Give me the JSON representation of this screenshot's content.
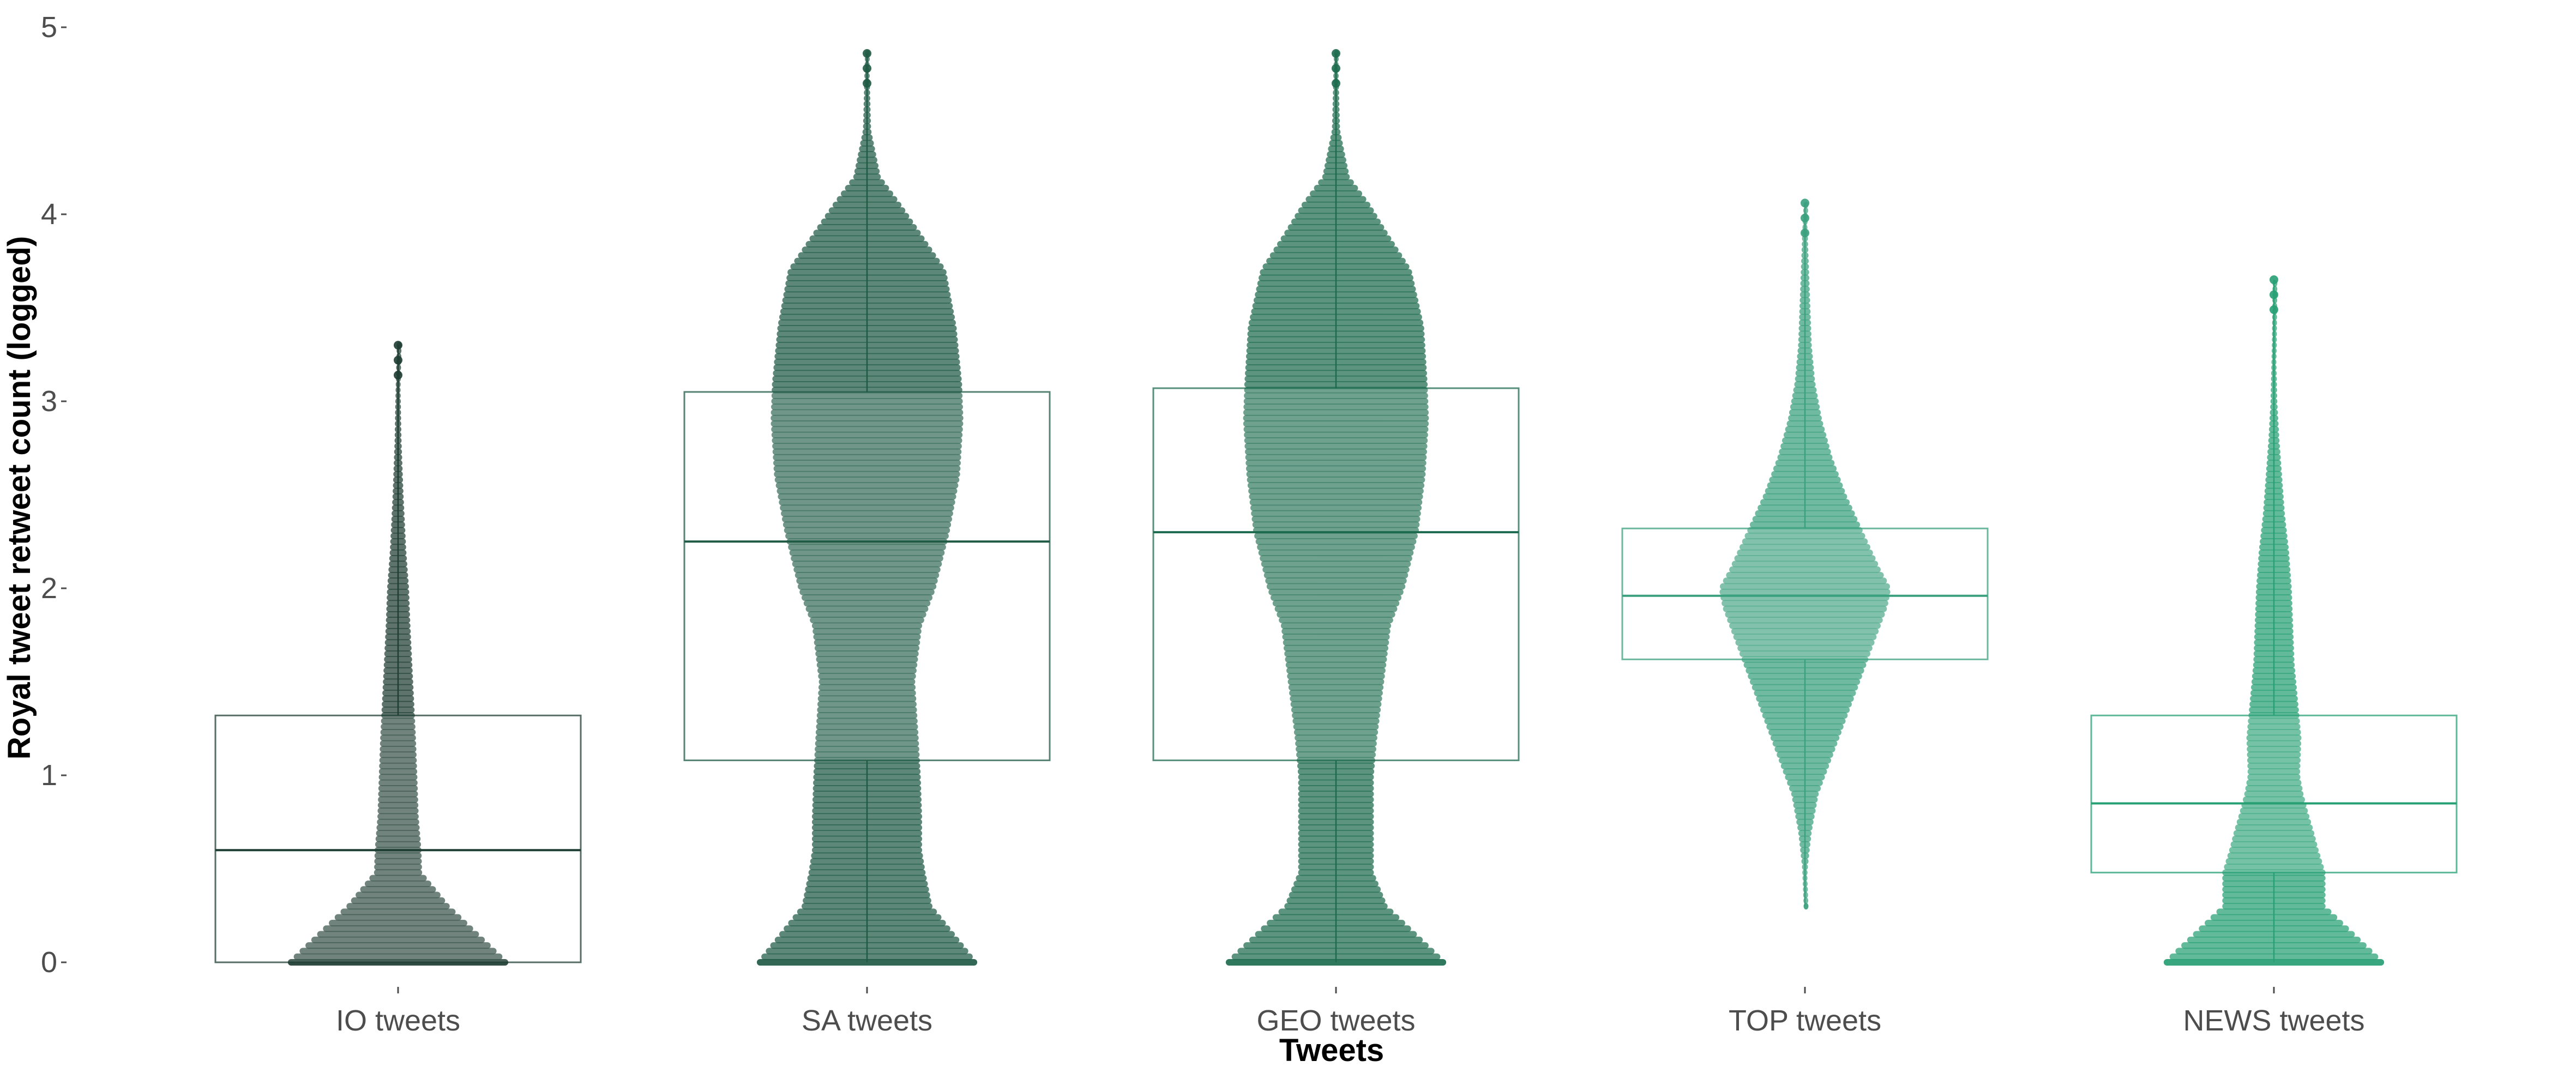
{
  "chart_data": {
    "type": "beeswarm-boxplot",
    "xlabel": "Tweets",
    "ylabel": "Royal tweet retweet count (logged)",
    "ylim": [
      0,
      5
    ],
    "yticks": [
      0,
      1,
      2,
      3,
      4,
      5
    ],
    "grid": false,
    "legend": "none",
    "categories": [
      "IO tweets",
      "SA tweets",
      "GEO tweets",
      "TOP tweets",
      "NEWS tweets"
    ],
    "colors": [
      "#1e3d33",
      "#1f5a45",
      "#1d6b4f",
      "#3aa07e",
      "#27a074"
    ],
    "box_stats": [
      {
        "category": "IO tweets",
        "whisker_low": 0,
        "q1": 0,
        "median": 0.6,
        "q3": 1.32,
        "whisker_high": 3.3
      },
      {
        "category": "SA tweets",
        "whisker_low": 0,
        "q1": 1.08,
        "median": 2.25,
        "q3": 3.05,
        "whisker_high": 4.86
      },
      {
        "category": "GEO tweets",
        "whisker_low": 0,
        "q1": 1.08,
        "median": 2.3,
        "q3": 3.07,
        "whisker_high": 4.86
      },
      {
        "category": "TOP tweets",
        "whisker_low": 0.3,
        "q1": 1.62,
        "median": 1.96,
        "q3": 2.32,
        "whisker_high": 4.06
      },
      {
        "category": "NEWS tweets",
        "whisker_low": 0,
        "q1": 0.48,
        "median": 0.85,
        "q3": 1.32,
        "whisker_high": 3.65
      }
    ],
    "density_profiles": [
      {
        "category": "IO tweets",
        "y": [
          0,
          0.3,
          0.48,
          0.6,
          0.78,
          1,
          1.2,
          1.5,
          1.8,
          2,
          2.2,
          2.5,
          2.8,
          3,
          3.3
        ],
        "halfwidth": [
          0.16,
          0.075,
          0.035,
          0.034,
          0.03,
          0.028,
          0.026,
          0.022,
          0.018,
          0.016,
          0.012,
          0.008,
          0.005,
          0.004,
          0.002
        ]
      },
      {
        "category": "SA tweets",
        "y": [
          0,
          0.3,
          0.48,
          0.6,
          0.78,
          1,
          1.2,
          1.5,
          1.8,
          2,
          2.3,
          2.6,
          2.9,
          3.1,
          3.4,
          3.7,
          3.9,
          4.05,
          4.2,
          4.45,
          4.86
        ],
        "halfwidth": [
          0.16,
          0.095,
          0.085,
          0.08,
          0.08,
          0.078,
          0.075,
          0.07,
          0.08,
          0.1,
          0.12,
          0.135,
          0.14,
          0.138,
          0.13,
          0.115,
          0.078,
          0.05,
          0.02,
          0.006,
          0.003
        ]
      },
      {
        "category": "GEO tweets",
        "y": [
          0,
          0.3,
          0.48,
          0.6,
          0.78,
          1,
          1.2,
          1.5,
          1.8,
          2,
          2.3,
          2.6,
          2.9,
          3.1,
          3.4,
          3.7,
          3.9,
          4.05,
          4.2,
          4.45,
          4.86
        ],
        "halfwidth": [
          0.16,
          0.075,
          0.055,
          0.055,
          0.055,
          0.055,
          0.06,
          0.07,
          0.08,
          0.1,
          0.12,
          0.13,
          0.135,
          0.133,
          0.128,
          0.11,
          0.075,
          0.05,
          0.02,
          0.006,
          0.003
        ]
      },
      {
        "category": "TOP tweets",
        "y": [
          0.3,
          0.5,
          0.7,
          0.9,
          1.1,
          1.3,
          1.5,
          1.7,
          1.9,
          2,
          2.1,
          2.3,
          2.5,
          2.7,
          2.9,
          3.1,
          3.3,
          3.5,
          3.7,
          3.9,
          4.06
        ],
        "halfwidth": [
          0.002,
          0.004,
          0.01,
          0.02,
          0.04,
          0.06,
          0.08,
          0.1,
          0.12,
          0.125,
          0.11,
          0.085,
          0.06,
          0.04,
          0.025,
          0.015,
          0.01,
          0.008,
          0.006,
          0.004,
          0.002
        ]
      },
      {
        "category": "NEWS tweets",
        "y": [
          0,
          0.3,
          0.48,
          0.6,
          0.7,
          0.8,
          0.9,
          1,
          1.2,
          1.4,
          1.6,
          1.8,
          2,
          2.2,
          2.4,
          2.6,
          2.8,
          3,
          3.3,
          3.65
        ],
        "halfwidth": [
          0.16,
          0.075,
          0.075,
          0.065,
          0.058,
          0.05,
          0.043,
          0.038,
          0.04,
          0.035,
          0.03,
          0.028,
          0.026,
          0.022,
          0.016,
          0.012,
          0.008,
          0.005,
          0.003,
          0.002
        ]
      }
    ]
  }
}
